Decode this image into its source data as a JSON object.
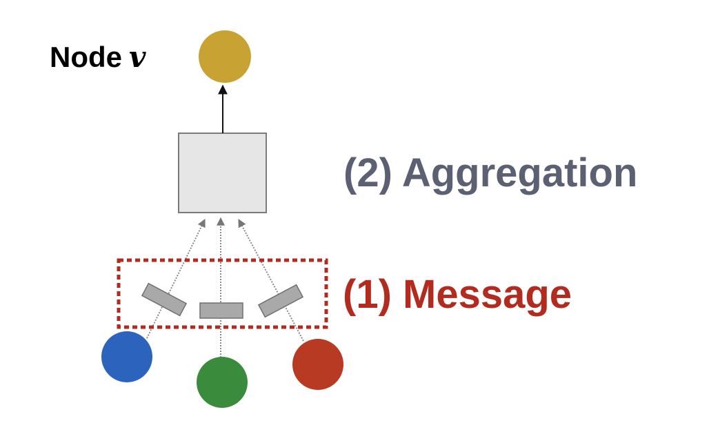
{
  "title": {
    "text": "Node",
    "variable": "v"
  },
  "steps": {
    "aggregation": "(2) Aggregation",
    "message": "(1) Message"
  },
  "colors": {
    "aggregation_label": "#5b6172",
    "message_label": "#b22b1e",
    "target_node": "#c9a234",
    "neighbor_blue": "#2c64bd",
    "neighbor_green": "#3a8b3c",
    "neighbor_red": "#b83a22",
    "aggregator_fill": "#e6e6e6",
    "message_rect_fill": "#a9a9a9",
    "message_box_border": "#b22b1e"
  },
  "icons": {
    "target": "circle",
    "neighbors": "circle",
    "messages": "rectangle",
    "aggregator": "square"
  }
}
